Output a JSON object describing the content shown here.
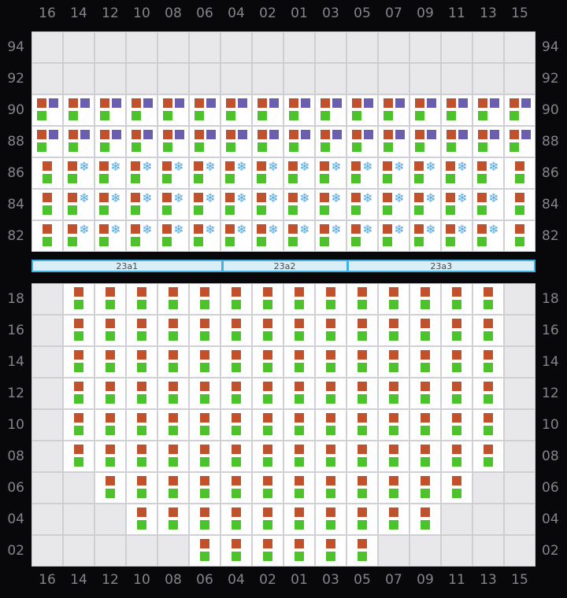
{
  "colors": {
    "orange": "#c0512c",
    "green": "#4cc32b",
    "purple": "#6a5fae",
    "snowflake": "#5aa6dd",
    "cell_bg": "#ffffff",
    "empty_cell_bg": "#e8e8ea",
    "grid_line": "#cfcfd4",
    "page_bg": "#08080a",
    "label_text": "#84848c",
    "corridor_fill": "#daeef8",
    "corridor_border": "#42b1e4",
    "corridor_text": "#4a4a4a"
  },
  "icons": {
    "snowflake": "❄"
  },
  "columns": [
    "16",
    "14",
    "12",
    "10",
    "08",
    "06",
    "04",
    "02",
    "01",
    "03",
    "05",
    "07",
    "09",
    "11",
    "13",
    "15"
  ],
  "cell_type_legend": {
    "e": "empty",
    "op": "orange-square + purple-square over green-square",
    "of": "orange-square + snowflake over green-square",
    "og": "orange-square over green-square"
  },
  "upper_deck": {
    "rows": [
      {
        "label": "94",
        "cells": [
          "e",
          "e",
          "e",
          "e",
          "e",
          "e",
          "e",
          "e",
          "e",
          "e",
          "e",
          "e",
          "e",
          "e",
          "e",
          "e"
        ]
      },
      {
        "label": "92",
        "cells": [
          "e",
          "e",
          "e",
          "e",
          "e",
          "e",
          "e",
          "e",
          "e",
          "e",
          "e",
          "e",
          "e",
          "e",
          "e",
          "e"
        ]
      },
      {
        "label": "90",
        "cells": [
          "op",
          "op",
          "op",
          "op",
          "op",
          "op",
          "op",
          "op",
          "op",
          "op",
          "op",
          "op",
          "op",
          "op",
          "op",
          "op"
        ]
      },
      {
        "label": "88",
        "cells": [
          "op",
          "op",
          "op",
          "op",
          "op",
          "op",
          "op",
          "op",
          "op",
          "op",
          "op",
          "op",
          "op",
          "op",
          "op",
          "op"
        ]
      },
      {
        "label": "86",
        "cells": [
          "og",
          "of",
          "of",
          "of",
          "of",
          "of",
          "of",
          "of",
          "of",
          "of",
          "of",
          "of",
          "of",
          "of",
          "of",
          "og"
        ]
      },
      {
        "label": "84",
        "cells": [
          "og",
          "of",
          "of",
          "of",
          "of",
          "of",
          "of",
          "of",
          "of",
          "of",
          "of",
          "of",
          "of",
          "of",
          "of",
          "og"
        ]
      },
      {
        "label": "82",
        "cells": [
          "og",
          "of",
          "of",
          "of",
          "of",
          "of",
          "of",
          "of",
          "of",
          "of",
          "of",
          "of",
          "of",
          "of",
          "of",
          "og"
        ]
      }
    ]
  },
  "corridor": {
    "segments": [
      {
        "label": "23a1",
        "width_pct": 37.5
      },
      {
        "label": "23a2",
        "width_pct": 25
      },
      {
        "label": "23a3",
        "width_pct": 37.5
      }
    ]
  },
  "lower_deck": {
    "rows": [
      {
        "label": "18",
        "cells": [
          "e",
          "og",
          "og",
          "og",
          "og",
          "og",
          "og",
          "og",
          "og",
          "og",
          "og",
          "og",
          "og",
          "og",
          "og",
          "e"
        ]
      },
      {
        "label": "16",
        "cells": [
          "e",
          "og",
          "og",
          "og",
          "og",
          "og",
          "og",
          "og",
          "og",
          "og",
          "og",
          "og",
          "og",
          "og",
          "og",
          "e"
        ]
      },
      {
        "label": "14",
        "cells": [
          "e",
          "og",
          "og",
          "og",
          "og",
          "og",
          "og",
          "og",
          "og",
          "og",
          "og",
          "og",
          "og",
          "og",
          "og",
          "e"
        ]
      },
      {
        "label": "12",
        "cells": [
          "e",
          "og",
          "og",
          "og",
          "og",
          "og",
          "og",
          "og",
          "og",
          "og",
          "og",
          "og",
          "og",
          "og",
          "og",
          "e"
        ]
      },
      {
        "label": "10",
        "cells": [
          "e",
          "og",
          "og",
          "og",
          "og",
          "og",
          "og",
          "og",
          "og",
          "og",
          "og",
          "og",
          "og",
          "og",
          "og",
          "e"
        ]
      },
      {
        "label": "08",
        "cells": [
          "e",
          "og",
          "og",
          "og",
          "og",
          "og",
          "og",
          "og",
          "og",
          "og",
          "og",
          "og",
          "og",
          "og",
          "og",
          "e"
        ]
      },
      {
        "label": "06",
        "cells": [
          "e",
          "e",
          "og",
          "og",
          "og",
          "og",
          "og",
          "og",
          "og",
          "og",
          "og",
          "og",
          "og",
          "og",
          "e",
          "e"
        ]
      },
      {
        "label": "04",
        "cells": [
          "e",
          "e",
          "e",
          "og",
          "og",
          "og",
          "og",
          "og",
          "og",
          "og",
          "og",
          "og",
          "og",
          "e",
          "e",
          "e"
        ]
      },
      {
        "label": "02",
        "cells": [
          "e",
          "e",
          "e",
          "e",
          "e",
          "og",
          "og",
          "og",
          "og",
          "og",
          "og",
          "e",
          "e",
          "e",
          "e",
          "e"
        ]
      }
    ]
  }
}
